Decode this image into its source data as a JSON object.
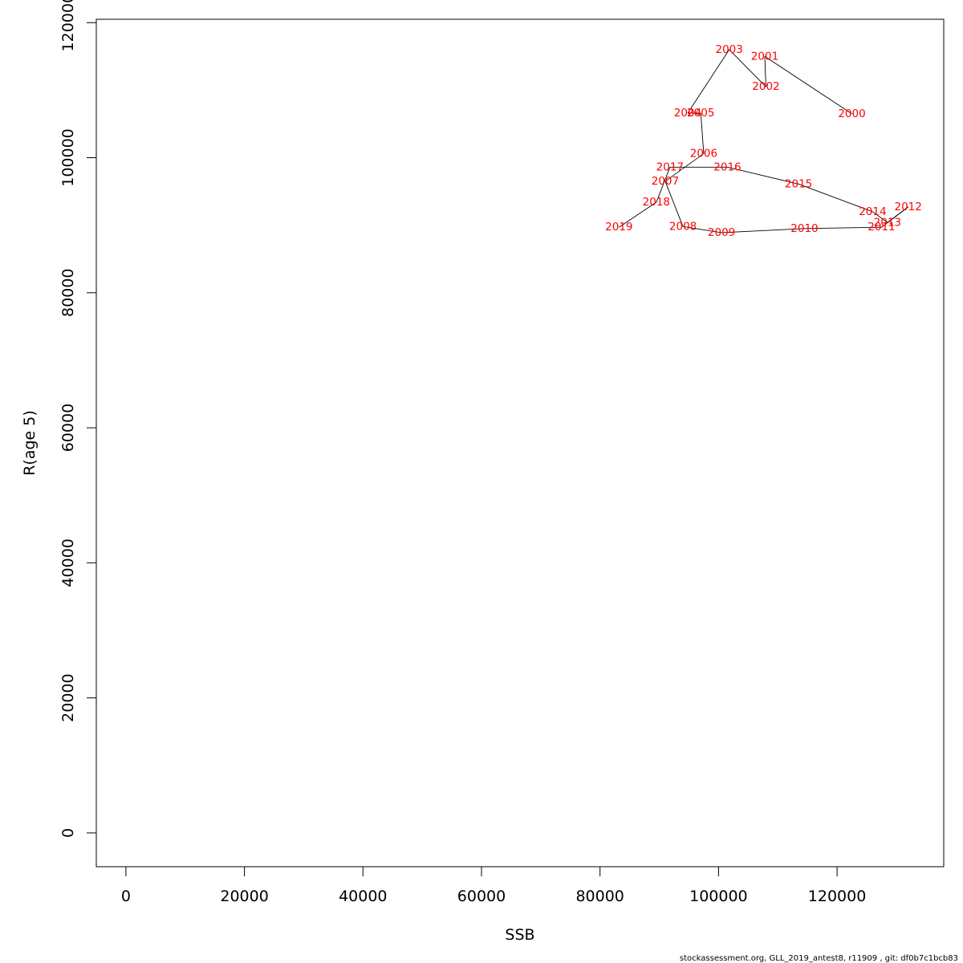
{
  "chart_data": {
    "type": "line",
    "xlabel": "SSB",
    "ylabel": "R(age 5)",
    "xlim": [
      -5000,
      138000
    ],
    "ylim": [
      -5000,
      120500
    ],
    "x_ticks": [
      0,
      20000,
      40000,
      60000,
      80000,
      100000,
      120000
    ],
    "y_ticks": [
      0,
      20000,
      40000,
      60000,
      80000,
      100000,
      120000
    ],
    "grid": false,
    "label_color": "#ff0000",
    "line_color": "#000000",
    "points": [
      {
        "year": "2000",
        "x": 122500,
        "y": 106500
      },
      {
        "year": "2001",
        "x": 107800,
        "y": 115000
      },
      {
        "year": "2002",
        "x": 108000,
        "y": 110500
      },
      {
        "year": "2003",
        "x": 101800,
        "y": 116000
      },
      {
        "year": "2004",
        "x": 94800,
        "y": 106600
      },
      {
        "year": "2005",
        "x": 97000,
        "y": 106600
      },
      {
        "year": "2006",
        "x": 97500,
        "y": 100600
      },
      {
        "year": "2007",
        "x": 91000,
        "y": 96500
      },
      {
        "year": "2008",
        "x": 94000,
        "y": 89800
      },
      {
        "year": "2009",
        "x": 100500,
        "y": 88900
      },
      {
        "year": "2010",
        "x": 114500,
        "y": 89500
      },
      {
        "year": "2011",
        "x": 127500,
        "y": 89700
      },
      {
        "year": "2012",
        "x": 132000,
        "y": 92700
      },
      {
        "year": "2013",
        "x": 128500,
        "y": 90400
      },
      {
        "year": "2014",
        "x": 126000,
        "y": 92000
      },
      {
        "year": "2015",
        "x": 113500,
        "y": 96100
      },
      {
        "year": "2016",
        "x": 101500,
        "y": 98600
      },
      {
        "year": "2017",
        "x": 91800,
        "y": 98600
      },
      {
        "year": "2018",
        "x": 89500,
        "y": 93400
      },
      {
        "year": "2019",
        "x": 83200,
        "y": 89700
      }
    ]
  },
  "footer": {
    "text": "stockassessment.org, GLL_2019_antest8, r11909 , git: df0b7c1bcb83"
  }
}
